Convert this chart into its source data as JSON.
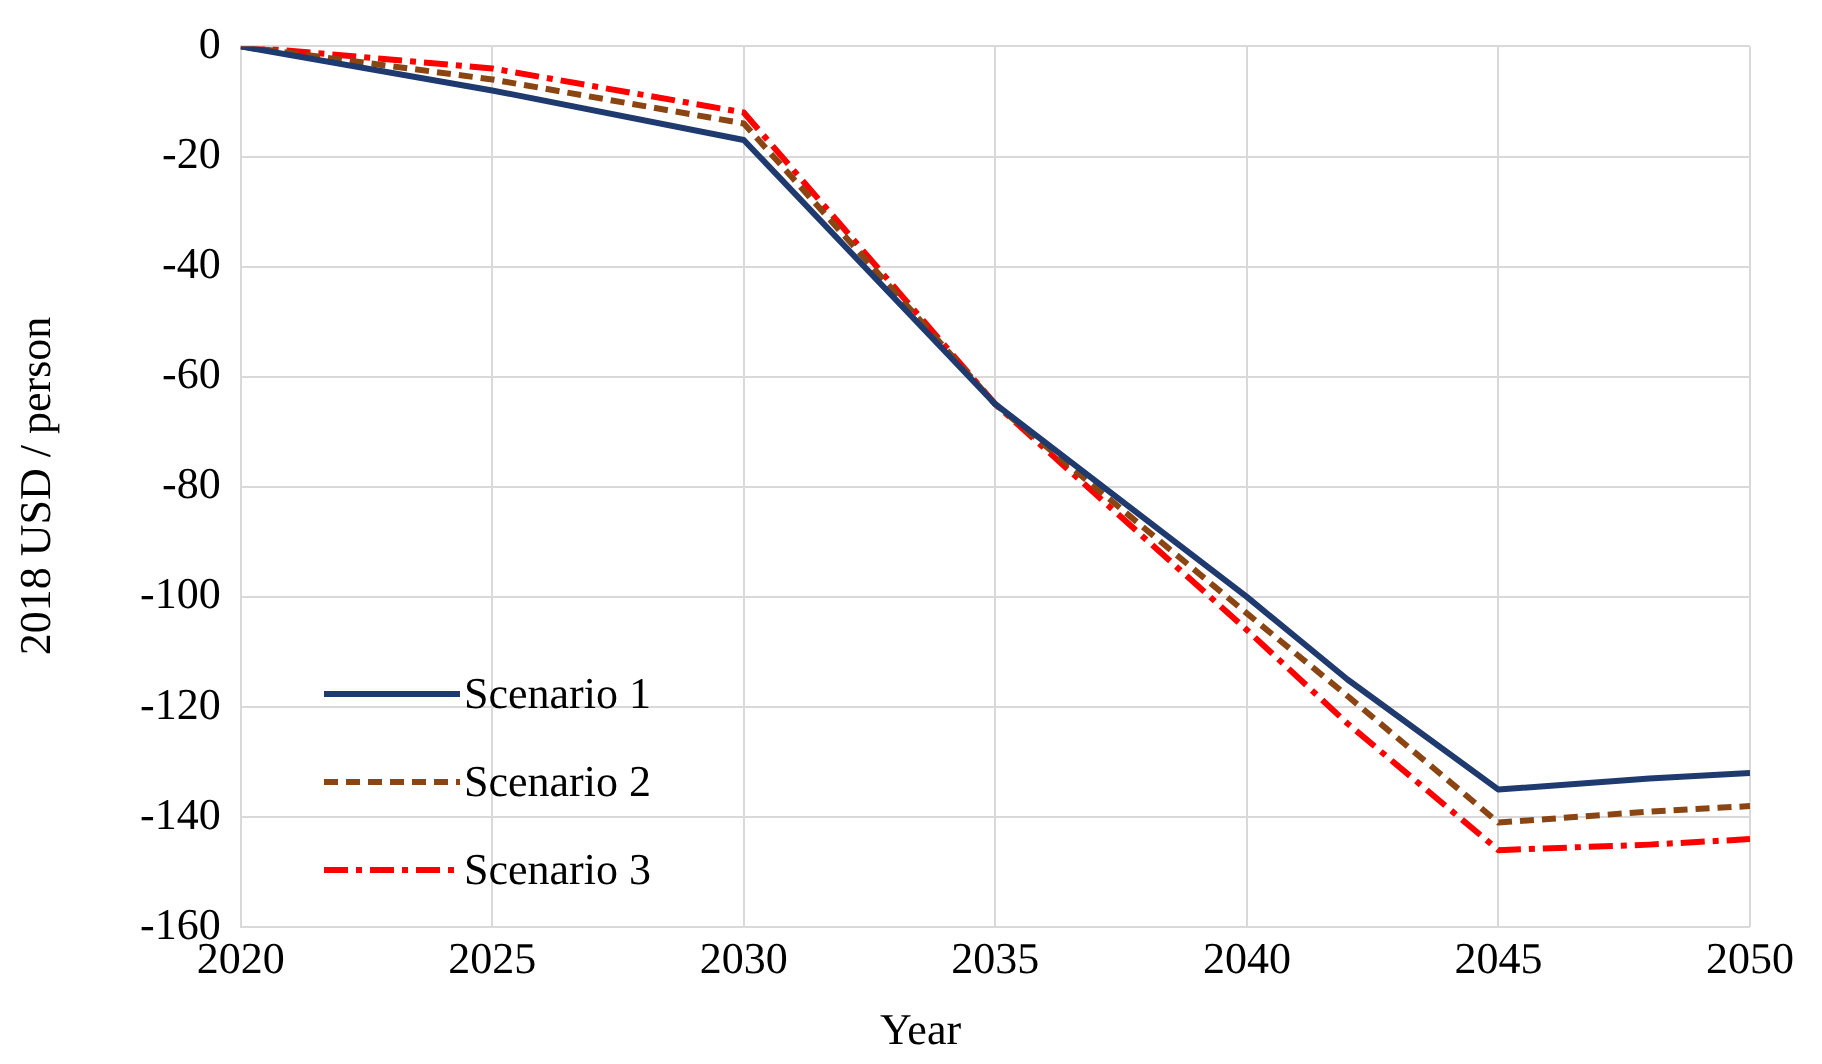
{
  "chart_data": {
    "type": "line",
    "xlabel": "Year",
    "ylabel": "2018 USD / person",
    "x": [
      2020,
      2025,
      2030,
      2035,
      2040,
      2042,
      2045,
      2048,
      2050
    ],
    "series": [
      {
        "name": "Scenario 1",
        "color": "#1f3a6e",
        "line_style": "solid",
        "values": [
          0,
          -8,
          -17,
          -65,
          -100,
          -115,
          -135,
          -133,
          -132
        ]
      },
      {
        "name": "Scenario 2",
        "color": "#8b4513",
        "line_style": "dashed",
        "values": [
          0,
          -6,
          -14,
          -65,
          -103,
          -118,
          -141,
          -139,
          -138
        ]
      },
      {
        "name": "Scenario 3",
        "color": "#ff0000",
        "line_style": "dashdot",
        "values": [
          0,
          -4,
          -12,
          -65,
          -106,
          -123,
          -146,
          -145,
          -144
        ]
      }
    ],
    "xlim": [
      2020,
      2050
    ],
    "xticks": [
      2020,
      2025,
      2030,
      2035,
      2040,
      2045,
      2050
    ],
    "ylim": [
      -160,
      0
    ],
    "yticks": [
      -160,
      -140,
      -120,
      -100,
      -80,
      -60,
      -40,
      -20,
      0
    ],
    "grid": true,
    "legend": "bottom left",
    "marker": "none"
  }
}
